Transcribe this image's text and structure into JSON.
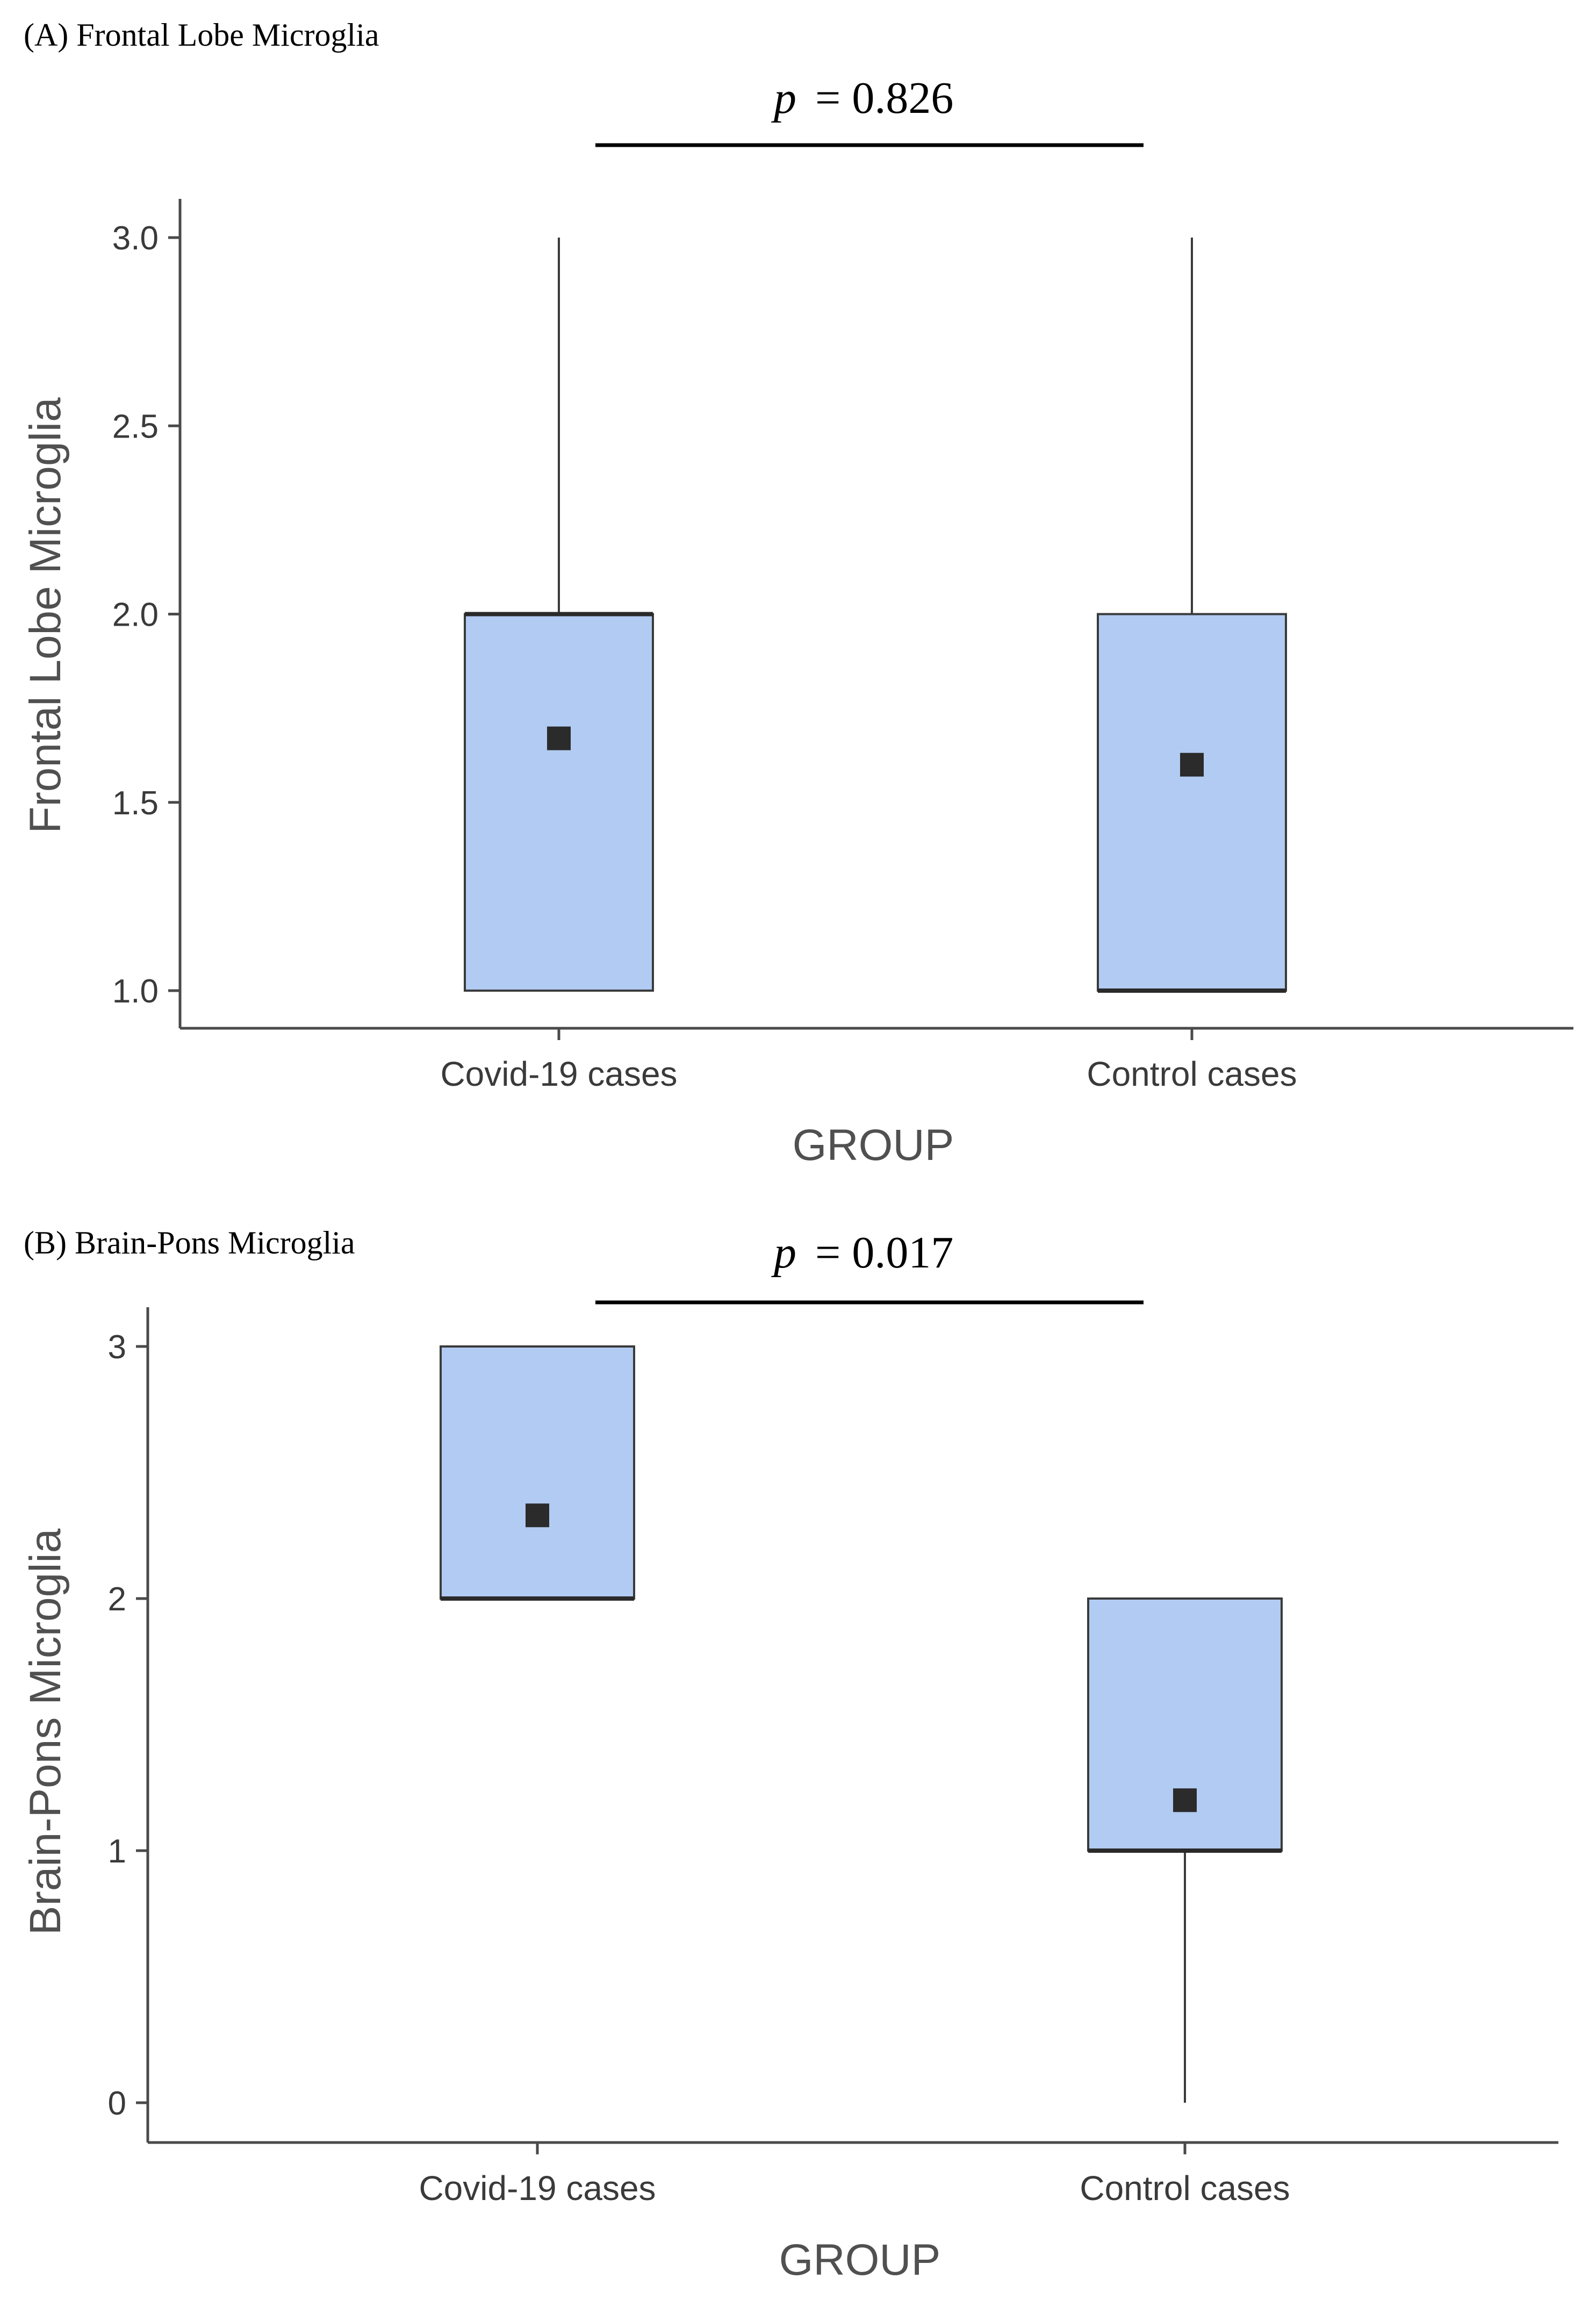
{
  "chart_data": [
    {
      "type": "box",
      "panel_title": "(A) Frontal Lobe Microglia",
      "p_value": {
        "prefix": "p",
        "text": "= 0.826"
      },
      "xlabel": "GROUP",
      "ylabel": "Frontal Lobe Microglia",
      "ylim": [
        0.9,
        3.1
      ],
      "yticks": [
        1.0,
        1.5,
        2.0,
        2.5,
        3.0
      ],
      "ytick_labels": [
        "1.0",
        "1.5",
        "2.0",
        "2.5",
        "3.0"
      ],
      "categories": [
        "Covid-19 cases",
        "Control cases"
      ],
      "groups": [
        {
          "name": "Covid-19 cases",
          "min": 1.0,
          "q1": 1.0,
          "median": 2.0,
          "q3": 2.0,
          "max": 3.0,
          "mean": 1.67
        },
        {
          "name": "Control cases",
          "min": 1.0,
          "q1": 1.0,
          "median": 1.0,
          "q3": 2.0,
          "max": 3.0,
          "mean": 1.6
        }
      ]
    },
    {
      "type": "box",
      "panel_title": "(B) Brain-Pons Microglia",
      "p_value": {
        "prefix": "p",
        "text": "= 0.017"
      },
      "xlabel": "GROUP",
      "ylabel": "Brain-Pons Microglia",
      "ylim": [
        -0.15,
        3.15
      ],
      "yticks": [
        0,
        1,
        2,
        3
      ],
      "ytick_labels": [
        "0",
        "1",
        "2",
        "3"
      ],
      "categories": [
        "Covid-19 cases",
        "Control cases"
      ],
      "groups": [
        {
          "name": "Covid-19 cases",
          "min": 2.0,
          "q1": 2.0,
          "median": 2.0,
          "q3": 3.0,
          "max": 3.0,
          "mean": 2.33
        },
        {
          "name": "Control cases",
          "min": 0.0,
          "q1": 1.0,
          "median": 1.0,
          "q3": 2.0,
          "max": 2.0,
          "mean": 1.2
        }
      ]
    }
  ],
  "colors": {
    "box_fill": "#b1cbf2",
    "box_stroke": "#3a3a3a",
    "mean_marker": "#2b2b2b",
    "axis": "#4a4a4a"
  }
}
